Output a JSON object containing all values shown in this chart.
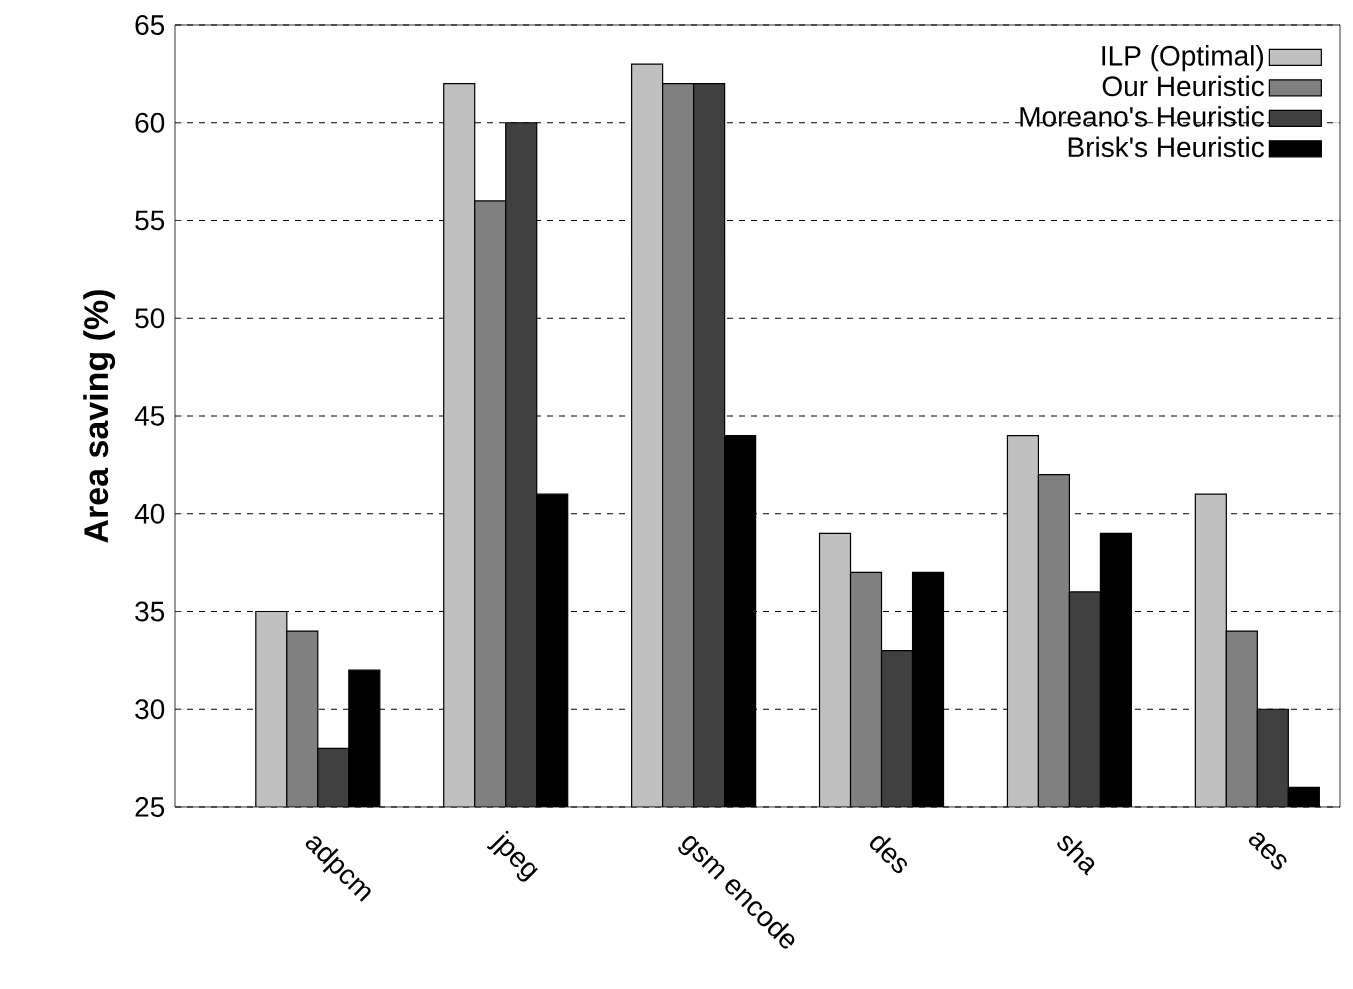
{
  "chart_data": {
    "type": "bar",
    "ylabel": "Area saving (%)",
    "categories": [
      "adpcm",
      "jpeg",
      "gsm encode",
      "des",
      "sha",
      "aes"
    ],
    "series": [
      {
        "name": "ILP (Optimal)",
        "color": "#c0c0c0",
        "values": [
          35,
          62,
          63,
          39,
          44,
          41
        ]
      },
      {
        "name": "Our Heuristic",
        "color": "#808080",
        "values": [
          34,
          56,
          62,
          37,
          42,
          34
        ]
      },
      {
        "name": "Moreano's Heuristic",
        "color": "#404040",
        "values": [
          28,
          60,
          62,
          33,
          36,
          30
        ]
      },
      {
        "name": "Brisk's Heuristic",
        "color": "#000000",
        "values": [
          32,
          41,
          44,
          37,
          39,
          26
        ]
      }
    ],
    "ylim": [
      25,
      65
    ],
    "yticks": [
      25,
      30,
      35,
      40,
      45,
      50,
      55,
      60,
      65
    ],
    "grid": "y",
    "legend": "top right"
  }
}
